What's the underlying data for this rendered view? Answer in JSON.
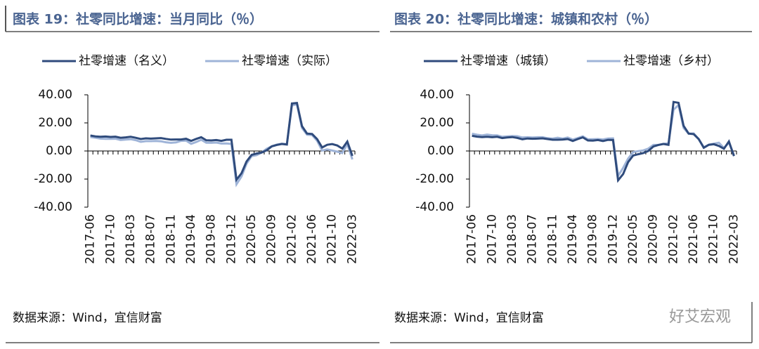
{
  "chart_data": [
    {
      "type": "line",
      "title": "图表 19：社零同比增速：当月同比（％）",
      "note": "数据来源：Wind，宜信财富",
      "categories": [
        "2017-06",
        null,
        null,
        null,
        "2017-10",
        null,
        null,
        null,
        "2018-03",
        null,
        null,
        null,
        "2018-07",
        null,
        null,
        null,
        "2018-11",
        null,
        null,
        null,
        "2019-04",
        null,
        null,
        null,
        "2019-08",
        null,
        null,
        null,
        "2019-12",
        null,
        null,
        null,
        "2020-05",
        null,
        null,
        null,
        "2020-09",
        null,
        null,
        null,
        "2021-02",
        null,
        null,
        null,
        "2021-06",
        null,
        null,
        null,
        "2021-10",
        null,
        null,
        null,
        "2022-03"
      ],
      "series": [
        {
          "name": "社零增速（名义）",
          "color": "#2f4b7c",
          "values": [
            11.0,
            10.4,
            10.1,
            10.3,
            10.0,
            10.2,
            9.4,
            9.7,
            10.1,
            9.4,
            8.5,
            9.0,
            8.8,
            9.0,
            9.2,
            8.6,
            8.1,
            8.2,
            8.2,
            8.7,
            7.2,
            8.6,
            9.8,
            7.6,
            7.5,
            7.8,
            7.2,
            8.0,
            8.0,
            -20.5,
            -15.8,
            -7.5,
            -2.8,
            -1.8,
            -1.1,
            0.5,
            3.3,
            4.3,
            5.0,
            4.6,
            33.8,
            34.2,
            17.7,
            12.4,
            12.1,
            8.5,
            2.5,
            4.4,
            4.9,
            3.9,
            1.7,
            6.7,
            -3.5
          ]
        },
        {
          "name": "社零增速（实际）",
          "color": "#9fb4d8",
          "values": [
            9.9,
            9.4,
            8.8,
            8.6,
            8.6,
            8.7,
            7.8,
            8.1,
            8.4,
            7.7,
            6.5,
            7.0,
            7.0,
            7.1,
            6.9,
            6.2,
            5.8,
            6.1,
            7.2,
            7.4,
            5.1,
            6.4,
            8.0,
            5.9,
            5.8,
            6.0,
            5.3,
            5.4,
            5.0,
            -23.7,
            -18.1,
            -9.1,
            -3.7,
            -3.0,
            -1.1,
            1.6,
            3.3,
            4.6,
            5.2,
            4.9,
            32.4,
            33.3,
            16.4,
            11.6,
            11.3,
            7.3,
            0.3,
            1.1,
            0.3,
            -0.5,
            -1.5,
            5.0,
            -6.0
          ]
        }
      ],
      "ylim": [
        -40,
        40
      ],
      "yticks": [
        {
          "value": 40,
          "label": "40.00"
        },
        {
          "value": 20,
          "label": "20.00"
        },
        {
          "value": 0,
          "label": "0.00"
        },
        {
          "value": -20,
          "label": "-20.00"
        },
        {
          "value": -40,
          "label": "-40.00"
        }
      ]
    },
    {
      "type": "line",
      "title": "图表 20：社零同比增速：城镇和农村（％）",
      "note": "数据来源：Wind，宜信财富",
      "categories": [
        "2017-06",
        null,
        null,
        null,
        "2017-10",
        null,
        null,
        null,
        "2018-03",
        null,
        null,
        null,
        "2018-07",
        null,
        null,
        null,
        "2018-11",
        null,
        null,
        null,
        "2019-04",
        null,
        null,
        null,
        "2019-08",
        null,
        null,
        null,
        "2019-12",
        null,
        null,
        null,
        "2020-05",
        null,
        null,
        null,
        "2020-09",
        null,
        null,
        null,
        "2021-02",
        null,
        null,
        null,
        "2021-06",
        null,
        null,
        null,
        "2021-10",
        null,
        null,
        null,
        "2022-03"
      ],
      "series": [
        {
          "name": "社零增速（城镇）",
          "color": "#2f4b7c",
          "values": [
            10.8,
            10.2,
            9.9,
            10.1,
            9.8,
            10.1,
            9.2,
            9.6,
            9.9,
            9.3,
            8.3,
            8.9,
            8.7,
            8.8,
            9.0,
            8.5,
            8.0,
            8.0,
            8.1,
            8.5,
            7.1,
            8.5,
            9.7,
            7.5,
            7.4,
            7.8,
            7.1,
            7.9,
            7.8,
            -20.9,
            -16.4,
            -7.9,
            -3.2,
            -2.3,
            -1.5,
            0.0,
            3.2,
            4.3,
            5.0,
            4.4,
            34.9,
            34.3,
            17.9,
            12.4,
            12.0,
            8.5,
            2.3,
            4.4,
            4.8,
            3.6,
            1.6,
            6.8,
            -3.6
          ]
        },
        {
          "name": "社零增速（乡村）",
          "color": "#9fb4d8",
          "values": [
            12.3,
            11.6,
            11.1,
            11.7,
            11.2,
            11.1,
            10.1,
            10.4,
            10.6,
            10.5,
            9.6,
            9.8,
            9.6,
            9.8,
            9.8,
            9.1,
            8.8,
            9.4,
            8.8,
            9.6,
            8.1,
            9.2,
            10.4,
            8.3,
            8.4,
            8.5,
            8.2,
            8.9,
            9.0,
            -17.7,
            -12.0,
            -5.4,
            -0.8,
            -0.1,
            0.4,
            1.7,
            4.3,
            4.3,
            5.1,
            5.5,
            29.4,
            32.7,
            16.4,
            12.3,
            12.5,
            8.4,
            2.6,
            4.5,
            5.2,
            5.9,
            2.1,
            6.0,
            -3.0
          ]
        }
      ],
      "ylim": [
        -40,
        40
      ],
      "yticks": [
        {
          "value": 40,
          "label": "40.00"
        },
        {
          "value": 20,
          "label": "20.00"
        },
        {
          "value": 0,
          "label": "0.00"
        },
        {
          "value": -20,
          "label": "-20.00"
        },
        {
          "value": -40,
          "label": "-40.00"
        }
      ]
    }
  ],
  "watermark": "好艾宏观"
}
